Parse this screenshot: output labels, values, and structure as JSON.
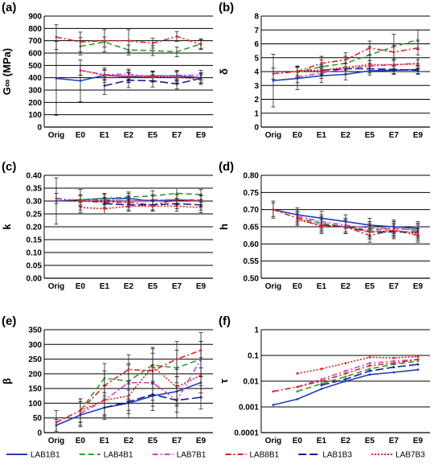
{
  "chart_data": [
    {
      "panel": "(a)",
      "type": "line",
      "ylabel": "G∞ (MPa)",
      "yscale": "linear",
      "ylim": [
        0,
        900
      ],
      "yticks": [
        0,
        100,
        200,
        300,
        400,
        500,
        600,
        700,
        800,
        900
      ],
      "categories": [
        "Orig",
        "E0",
        "E1",
        "E2",
        "E5",
        "E7",
        "E9"
      ],
      "series": [
        {
          "name": "LAB1B1",
          "values": [
            395,
            375,
            420,
            410,
            415,
            415,
            400
          ],
          "err": [
            300,
            170,
            60,
            50,
            40,
            40,
            40
          ]
        },
        {
          "name": "LAB4B1",
          "values": [
            null,
            655,
            690,
            625,
            620,
            610,
            675
          ],
          "err": [
            null,
            70,
            40,
            40,
            40,
            40,
            40
          ]
        },
        {
          "name": "LAB7B1",
          "values": [
            null,
            460,
            425,
            430,
            405,
            420,
            420
          ],
          "err": [
            null,
            40,
            40,
            40,
            40,
            40,
            40
          ]
        },
        {
          "name": "LAB8B1",
          "values": [
            730,
            690,
            700,
            700,
            680,
            735,
            670
          ],
          "err": [
            100,
            80,
            90,
            90,
            40,
            40,
            40
          ]
        },
        {
          "name": "LAB1B3",
          "values": [
            null,
            null,
            335,
            380,
            375,
            350,
            395
          ],
          "err": [
            null,
            null,
            70,
            60,
            50,
            40,
            40
          ]
        },
        {
          "name": "LAB7B3",
          "values": [
            null,
            460,
            420,
            405,
            410,
            405,
            385
          ],
          "err": [
            null,
            40,
            40,
            40,
            40,
            40,
            40
          ]
        }
      ]
    },
    {
      "panel": "(b)",
      "type": "line",
      "ylabel": "δ",
      "yscale": "linear",
      "ylim": [
        0,
        8
      ],
      "yticks": [
        0,
        1,
        2,
        3,
        4,
        5,
        6,
        7,
        8
      ],
      "categories": [
        "Orig",
        "E0",
        "E1",
        "E2",
        "E5",
        "E7",
        "E9"
      ],
      "series": [
        {
          "name": "LAB1B1",
          "values": [
            3.35,
            3.5,
            3.7,
            3.8,
            4.05,
            4.1,
            4.15
          ],
          "err": [
            1.9,
            0.8,
            0.5,
            0.4,
            0.3,
            0.3,
            0.3
          ]
        },
        {
          "name": "LAB4B1",
          "values": [
            null,
            3.95,
            4.35,
            4.6,
            5.2,
            5.8,
            6.3
          ],
          "err": [
            null,
            0.4,
            0.5,
            0.5,
            0.6,
            0.9,
            0.7
          ]
        },
        {
          "name": "LAB7B1",
          "values": [
            null,
            3.6,
            3.9,
            4.2,
            4.4,
            4.5,
            4.6
          ],
          "err": [
            null,
            0.4,
            0.4,
            0.4,
            0.4,
            0.4,
            0.4
          ]
        },
        {
          "name": "LAB8B1",
          "values": [
            3.85,
            4.0,
            4.6,
            4.85,
            5.7,
            5.4,
            5.7
          ],
          "err": [
            0.4,
            0.4,
            0.5,
            0.5,
            0.5,
            0.5,
            0.5
          ]
        },
        {
          "name": "LAB1B3",
          "values": [
            null,
            null,
            4.1,
            4.2,
            4.2,
            4.15,
            4.1
          ],
          "err": [
            null,
            null,
            0.4,
            0.4,
            0.3,
            0.3,
            0.3
          ]
        },
        {
          "name": "LAB7B3",
          "values": [
            null,
            4.05,
            4.1,
            4.3,
            4.5,
            4.5,
            4.55
          ],
          "err": [
            null,
            0.3,
            0.3,
            0.3,
            0.3,
            0.3,
            0.3
          ]
        }
      ]
    },
    {
      "panel": "(c)",
      "type": "line",
      "ylabel": "k",
      "yscale": "linear",
      "ylim": [
        0,
        0.4
      ],
      "yticks": [
        "0.00",
        "0.05",
        "0.10",
        "0.15",
        "0.20",
        "0.25",
        "0.30",
        "0.35",
        "0.40"
      ],
      "categories": [
        "Orig",
        "E0",
        "E1",
        "E2",
        "E5",
        "E7",
        "E9"
      ],
      "series": [
        {
          "name": "LAB1B1",
          "values": [
            0.3,
            0.305,
            0.31,
            0.31,
            0.3,
            0.305,
            0.3
          ],
          "err": [
            0.09,
            0.04,
            0.02,
            0.02,
            0.02,
            0.02,
            0.02
          ]
        },
        {
          "name": "LAB4B1",
          "values": [
            null,
            0.305,
            0.31,
            0.315,
            0.32,
            0.33,
            0.325
          ],
          "err": [
            null,
            0.02,
            0.02,
            0.02,
            0.02,
            0.02,
            0.02
          ]
        },
        {
          "name": "LAB7B1",
          "values": [
            null,
            0.3,
            0.305,
            0.3,
            0.305,
            0.305,
            0.305
          ],
          "err": [
            null,
            0.02,
            0.02,
            0.02,
            0.02,
            0.02,
            0.02
          ]
        },
        {
          "name": "LAB8B1",
          "values": [
            0.31,
            0.3,
            0.295,
            0.295,
            0.285,
            0.305,
            0.3
          ],
          "err": [
            0.02,
            0.02,
            0.02,
            0.02,
            0.02,
            0.02,
            0.02
          ]
        },
        {
          "name": "LAB1B3",
          "values": [
            null,
            null,
            0.29,
            0.285,
            0.285,
            0.29,
            0.285
          ],
          "err": [
            null,
            null,
            0.02,
            0.02,
            0.02,
            0.02,
            0.02
          ]
        },
        {
          "name": "LAB7B3",
          "values": [
            null,
            0.275,
            0.27,
            0.28,
            0.28,
            0.28,
            0.275
          ],
          "err": [
            null,
            0.02,
            0.02,
            0.02,
            0.02,
            0.02,
            0.02
          ]
        }
      ]
    },
    {
      "panel": "(d)",
      "type": "line",
      "ylabel": "h",
      "yscale": "linear",
      "ylim": [
        0.5,
        0.8
      ],
      "yticks": [
        "0.50",
        "0.55",
        "0.60",
        "0.65",
        "0.70",
        "0.75",
        "0.80"
      ],
      "categories": [
        "Orig",
        "E0",
        "E1",
        "E2",
        "E5",
        "E7",
        "E9"
      ],
      "series": [
        {
          "name": "LAB1B1",
          "values": [
            0.7,
            0.685,
            0.675,
            0.665,
            0.655,
            0.65,
            0.645
          ],
          "err": [
            0.025,
            0.02,
            0.02,
            0.02,
            0.02,
            0.02,
            0.02
          ]
        },
        {
          "name": "LAB4B1",
          "values": [
            null,
            0.675,
            0.66,
            0.65,
            0.64,
            0.645,
            0.64
          ],
          "err": [
            null,
            0.02,
            0.02,
            0.02,
            0.02,
            0.02,
            0.02
          ]
        },
        {
          "name": "LAB7B1",
          "values": [
            null,
            0.68,
            0.665,
            0.655,
            0.645,
            0.645,
            0.64
          ],
          "err": [
            null,
            0.02,
            0.02,
            0.02,
            0.02,
            0.02,
            0.02
          ]
        },
        {
          "name": "LAB8B1",
          "values": [
            0.7,
            0.675,
            0.65,
            0.65,
            0.625,
            0.64,
            0.625
          ],
          "err": [
            0.02,
            0.02,
            0.02,
            0.02,
            0.02,
            0.02,
            0.02
          ]
        },
        {
          "name": "LAB1B3",
          "values": [
            null,
            null,
            0.655,
            0.65,
            0.635,
            0.635,
            0.635
          ],
          "err": [
            null,
            null,
            0.02,
            0.02,
            0.02,
            0.02,
            0.02
          ]
        },
        {
          "name": "LAB7B3",
          "values": [
            null,
            0.67,
            0.655,
            0.65,
            0.635,
            0.64,
            0.63
          ],
          "err": [
            null,
            0.02,
            0.02,
            0.02,
            0.02,
            0.02,
            0.02
          ]
        }
      ]
    },
    {
      "panel": "(e)",
      "type": "line",
      "ylabel": "β",
      "yscale": "linear",
      "ylim": [
        0,
        350
      ],
      "yticks": [
        0,
        50,
        100,
        150,
        200,
        250,
        300,
        350
      ],
      "categories": [
        "Orig",
        "E0",
        "E1",
        "E2",
        "E5",
        "E7",
        "E9"
      ],
      "series": [
        {
          "name": "LAB1B1",
          "values": [
            25,
            60,
            85,
            100,
            125,
            140,
            170
          ],
          "err": [
            20,
            40,
            40,
            50,
            50,
            50,
            50
          ]
        },
        {
          "name": "LAB4B1",
          "values": [
            null,
            75,
            185,
            175,
            230,
            220,
            250
          ],
          "err": [
            null,
            40,
            50,
            60,
            60,
            60,
            60
          ]
        },
        {
          "name": "LAB7B1",
          "values": [
            null,
            65,
            110,
            170,
            170,
            110,
            250
          ],
          "err": [
            null,
            40,
            50,
            60,
            60,
            60,
            60
          ]
        },
        {
          "name": "LAB8B1",
          "values": [
            35,
            75,
            160,
            215,
            210,
            250,
            280
          ],
          "err": [
            40,
            40,
            50,
            50,
            60,
            60,
            60
          ]
        },
        {
          "name": "LAB1B3",
          "values": [
            null,
            null,
            85,
            105,
            130,
            110,
            120
          ],
          "err": [
            null,
            null,
            30,
            40,
            40,
            40,
            40
          ]
        },
        {
          "name": "LAB7B3",
          "values": [
            null,
            75,
            110,
            125,
            225,
            155,
            195
          ],
          "err": [
            null,
            40,
            50,
            50,
            60,
            60,
            60
          ]
        }
      ]
    },
    {
      "panel": "(f)",
      "type": "line",
      "ylabel": "τ",
      "yscale": "log",
      "ylim": [
        0.0001,
        1
      ],
      "yticks": [
        "0.0001",
        "0.001",
        "0.01",
        "0.1",
        "1"
      ],
      "categories": [
        "Orig",
        "E0",
        "E1",
        "E2",
        "E5",
        "E7",
        "E9"
      ],
      "series": [
        {
          "name": "LAB1B1",
          "values": [
            0.0012,
            0.002,
            0.005,
            0.01,
            0.018,
            0.022,
            0.028
          ]
        },
        {
          "name": "LAB4B1",
          "values": [
            null,
            0.004,
            0.008,
            0.015,
            0.03,
            0.045,
            0.06
          ]
        },
        {
          "name": "LAB7B1",
          "values": [
            null,
            0.006,
            0.012,
            0.025,
            0.05,
            0.06,
            0.07
          ]
        },
        {
          "name": "LAB8B1",
          "values": [
            0.004,
            0.006,
            0.01,
            0.02,
            0.04,
            0.05,
            0.07
          ]
        },
        {
          "name": "LAB1B3",
          "values": [
            null,
            null,
            0.007,
            0.012,
            0.025,
            0.035,
            0.045
          ]
        },
        {
          "name": "LAB7B3",
          "values": [
            null,
            0.02,
            0.03,
            0.05,
            0.085,
            0.08,
            0.09
          ]
        }
      ]
    }
  ],
  "legend": {
    "entries": [
      {
        "name": "LAB1B1",
        "color": "#1f3fbf",
        "dash": "solid"
      },
      {
        "name": "LAB4B1",
        "color": "#2e9e2e",
        "dash": "dash"
      },
      {
        "name": "LAB7B1",
        "color": "#cc44cc",
        "dash": "dashdot"
      },
      {
        "name": "LAB8B1",
        "color": "#e02020",
        "dash": "dashdot"
      },
      {
        "name": "LAB1B3",
        "color": "#1a1a99",
        "dash": "longdash"
      },
      {
        "name": "LAB7B3",
        "color": "#e02020",
        "dash": "dotted"
      }
    ]
  }
}
